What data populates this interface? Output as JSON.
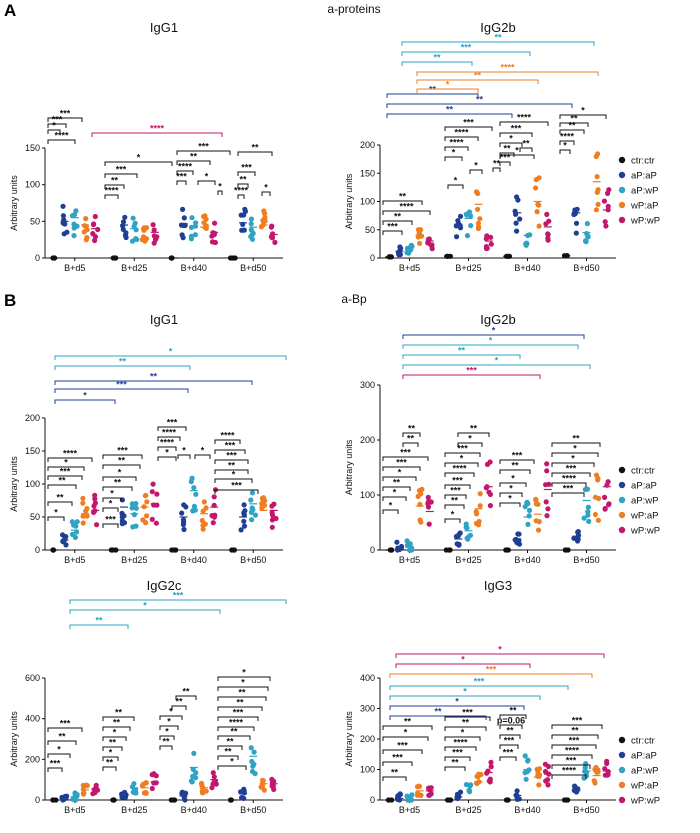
{
  "panel_labels": [
    "A",
    "B"
  ],
  "section_titles": [
    "a-proteins",
    "a-Bp"
  ],
  "colors": {
    "ctr:ctr": "#111111",
    "aP:aP": "#1f3f94",
    "aP:wP": "#2ea3c4",
    "wP:aP": "#ef7d22",
    "wP:wP": "#c2176d"
  },
  "legend_entries": [
    "ctr:ctr",
    "aP:aP",
    "aP:wP",
    "wP:aP",
    "wP:wP"
  ],
  "chart_data": [
    {
      "type": "scatter",
      "title": "IgG1",
      "section": "a-proteins",
      "ylabel": "Arbitrary units",
      "ylim": [
        0,
        150
      ],
      "yticks": [
        "0",
        "50",
        "100",
        "150"
      ],
      "categories": [
        "B+d5",
        "B+d25",
        "B+d40",
        "B+d50"
      ],
      "series": [
        {
          "name": "ctr:ctr",
          "values": [
            0,
            0,
            0,
            0
          ]
        },
        {
          "name": "aP:aP",
          "values": [
            50,
            45,
            47,
            48
          ]
        },
        {
          "name": "aP:wP",
          "values": [
            55,
            40,
            42,
            42
          ]
        },
        {
          "name": "wP:aP",
          "values": [
            45,
            40,
            42,
            45
          ]
        },
        {
          "name": "wP:wP",
          "values": [
            40,
            35,
            35,
            32
          ]
        }
      ],
      "significance": [
        {
          "label": "*",
          "group": "wP:wP"
        },
        {
          "label": "***"
        },
        {
          "label": "****"
        },
        {
          "label": "***"
        },
        {
          "label": "****"
        },
        {
          "label": "*"
        },
        {
          "label": "***"
        },
        {
          "label": "**"
        },
        {
          "label": "****"
        },
        {
          "label": "***"
        },
        {
          "label": "**"
        },
        {
          "label": "****"
        },
        {
          "label": "***"
        },
        {
          "label": "*"
        },
        {
          "label": "*"
        },
        {
          "label": "**"
        },
        {
          "label": "***"
        },
        {
          "label": "**"
        },
        {
          "label": "****"
        },
        {
          "label": "*"
        }
      ]
    },
    {
      "type": "scatter",
      "title": "IgG2b",
      "section": "a-proteins",
      "ylabel": "Arbitrary units",
      "ylim": [
        0,
        200
      ],
      "yticks": [
        "0",
        "50",
        "100",
        "150",
        "200"
      ],
      "categories": [
        "B+d5",
        "B+d25",
        "B+d40",
        "B+d50"
      ],
      "series": [
        {
          "name": "ctr:ctr",
          "values": [
            2,
            3,
            3,
            4
          ]
        },
        {
          "name": "aP:aP",
          "values": [
            12,
            60,
            80,
            80
          ]
        },
        {
          "name": "aP:wP",
          "values": [
            15,
            70,
            40,
            45
          ]
        },
        {
          "name": "wP:aP",
          "values": [
            40,
            95,
            100,
            135
          ]
        },
        {
          "name": "wP:wP",
          "values": [
            30,
            30,
            55,
            85
          ]
        }
      ],
      "significance": [
        {
          "label": "***"
        },
        {
          "label": "**"
        },
        {
          "label": "****"
        },
        {
          "label": "**"
        },
        {
          "label": "*"
        },
        {
          "label": "*"
        },
        {
          "label": "**"
        },
        {
          "label": "**"
        },
        {
          "label": "**"
        },
        {
          "label": "***"
        },
        {
          "label": "****"
        },
        {
          "label": "****"
        },
        {
          "label": "*"
        },
        {
          "label": "**"
        },
        {
          "label": "*"
        },
        {
          "label": "****"
        },
        {
          "label": "***"
        },
        {
          "label": "*"
        },
        {
          "label": "**"
        },
        {
          "label": "***"
        },
        {
          "label": "**"
        },
        {
          "label": "*"
        },
        {
          "label": "**"
        },
        {
          "label": "**"
        },
        {
          "label": "****"
        },
        {
          "label": "*"
        },
        {
          "label": "**"
        }
      ]
    },
    {
      "type": "scatter",
      "title": "IgG1",
      "section": "a-Bp",
      "ylabel": "Arbitrary units",
      "ylim": [
        0,
        200
      ],
      "yticks": [
        "0",
        "50",
        "100",
        "150",
        "200"
      ],
      "categories": [
        "B+d5",
        "B+d25",
        "B+d40",
        "B+d50"
      ],
      "series": [
        {
          "name": "ctr:ctr",
          "values": [
            0,
            0,
            0,
            0
          ]
        },
        {
          "name": "aP:aP",
          "values": [
            15,
            65,
            50,
            50
          ]
        },
        {
          "name": "aP:wP",
          "values": [
            30,
            55,
            90,
            70
          ]
        },
        {
          "name": "wP:aP",
          "values": [
            55,
            65,
            55,
            60
          ]
        },
        {
          "name": "wP:wP",
          "values": [
            60,
            70,
            65,
            60
          ]
        }
      ],
      "significance": [
        {
          "label": "*"
        },
        {
          "label": "**"
        },
        {
          "label": "**"
        },
        {
          "label": "***"
        },
        {
          "label": "*"
        },
        {
          "label": "****"
        },
        {
          "label": "***"
        },
        {
          "label": "*"
        },
        {
          "label": "*"
        },
        {
          "label": "**"
        },
        {
          "label": "*"
        },
        {
          "label": "**"
        },
        {
          "label": "***"
        },
        {
          "label": "****"
        },
        {
          "label": "****"
        },
        {
          "label": "***"
        },
        {
          "label": "*"
        },
        {
          "label": "*"
        },
        {
          "label": "*"
        },
        {
          "label": "****"
        },
        {
          "label": "***"
        },
        {
          "label": "***"
        },
        {
          "label": "**"
        },
        {
          "label": "*"
        },
        {
          "label": "***"
        }
      ]
    },
    {
      "type": "scatter",
      "title": "IgG2b",
      "section": "a-Bp",
      "ylabel": "Arbitrary units",
      "ylim": [
        0,
        300
      ],
      "yticks": [
        "0",
        "100",
        "200",
        "300"
      ],
      "categories": [
        "B+d5",
        "B+d25",
        "B+d40",
        "B+d50"
      ],
      "series": [
        {
          "name": "ctr:ctr",
          "values": [
            0,
            0,
            0,
            0
          ]
        },
        {
          "name": "aP:aP",
          "values": [
            3,
            20,
            20,
            25
          ]
        },
        {
          "name": "aP:wP",
          "values": [
            5,
            35,
            60,
            90
          ]
        },
        {
          "name": "wP:aP",
          "values": [
            80,
            75,
            65,
            95
          ]
        },
        {
          "name": "wP:wP",
          "values": [
            70,
            115,
            110,
            115
          ]
        }
      ],
      "significance": [
        {
          "label": "*"
        },
        {
          "label": "*"
        },
        {
          "label": "**"
        },
        {
          "label": "*"
        },
        {
          "label": "***"
        },
        {
          "label": "***"
        },
        {
          "label": "**"
        },
        {
          "label": "**"
        },
        {
          "label": "*"
        },
        {
          "label": "**"
        },
        {
          "label": "***"
        },
        {
          "label": "***"
        },
        {
          "label": "****"
        },
        {
          "label": "*"
        },
        {
          "label": "***"
        },
        {
          "label": "*"
        },
        {
          "label": "**"
        },
        {
          "label": "*"
        },
        {
          "label": "*"
        },
        {
          "label": "*"
        },
        {
          "label": "**"
        },
        {
          "label": "***"
        },
        {
          "label": "***"
        },
        {
          "label": "****"
        },
        {
          "label": "***"
        },
        {
          "label": "*"
        },
        {
          "label": "*"
        },
        {
          "label": "**"
        }
      ]
    },
    {
      "type": "scatter",
      "title": "IgG2c",
      "section": "a-Bp",
      "ylabel": "Arbitrary units",
      "ylim": [
        0,
        600
      ],
      "yticks": [
        "0",
        "200",
        "400",
        "600"
      ],
      "categories": [
        "B+d5",
        "B+d25",
        "B+d40",
        "B+d50"
      ],
      "series": [
        {
          "name": "ctr:ctr",
          "values": [
            0,
            0,
            0,
            0
          ]
        },
        {
          "name": "aP:aP",
          "values": [
            5,
            15,
            20,
            30
          ]
        },
        {
          "name": "aP:wP",
          "values": [
            15,
            60,
            160,
            215
          ]
        },
        {
          "name": "wP:aP",
          "values": [
            50,
            60,
            60,
            80
          ]
        },
        {
          "name": "wP:wP",
          "values": [
            55,
            90,
            100,
            80
          ]
        }
      ],
      "significance": [
        {
          "label": "***"
        },
        {
          "label": "*"
        },
        {
          "label": "**"
        },
        {
          "label": "***"
        },
        {
          "label": "**"
        },
        {
          "label": "*"
        },
        {
          "label": "**"
        },
        {
          "label": "*"
        },
        {
          "label": "**"
        },
        {
          "label": "**"
        },
        {
          "label": "**"
        },
        {
          "label": "*"
        },
        {
          "label": "*"
        },
        {
          "label": "*"
        },
        {
          "label": "**"
        },
        {
          "label": "**"
        },
        {
          "label": "*"
        },
        {
          "label": "**"
        },
        {
          "label": "**"
        },
        {
          "label": "**"
        },
        {
          "label": "****"
        },
        {
          "label": "***"
        },
        {
          "label": "**"
        },
        {
          "label": "**"
        },
        {
          "label": "*"
        },
        {
          "label": "*"
        }
      ]
    },
    {
      "type": "scatter",
      "title": "IgG3",
      "section": "a-Bp",
      "ylabel": "Arbitrary units",
      "ylim": [
        0,
        400
      ],
      "yticks": [
        "0",
        "100",
        "200",
        "300",
        "400"
      ],
      "categories": [
        "B+d5",
        "B+d25",
        "B+d40",
        "B+d50"
      ],
      "series": [
        {
          "name": "ctr:ctr",
          "values": [
            0,
            0,
            0,
            0
          ]
        },
        {
          "name": "aP:aP",
          "values": [
            5,
            10,
            15,
            30
          ]
        },
        {
          "name": "aP:wP",
          "values": [
            10,
            45,
            100,
            95
          ]
        },
        {
          "name": "wP:aP",
          "values": [
            30,
            60,
            75,
            80
          ]
        },
        {
          "name": "wP:wP",
          "values": [
            30,
            90,
            85,
            95
          ]
        }
      ],
      "significance": [
        {
          "label": "**"
        },
        {
          "label": "***"
        },
        {
          "label": "***"
        },
        {
          "label": "*"
        },
        {
          "label": "**"
        },
        {
          "label": "**"
        },
        {
          "label": "***"
        },
        {
          "label": "****"
        },
        {
          "label": "*"
        },
        {
          "label": "**"
        },
        {
          "label": "***"
        },
        {
          "label": "***"
        },
        {
          "label": "***"
        },
        {
          "label": "**"
        },
        {
          "label": "p=0.06"
        },
        {
          "label": "**"
        },
        {
          "label": "****"
        },
        {
          "label": "***"
        },
        {
          "label": "****"
        },
        {
          "label": "***"
        },
        {
          "label": "**"
        },
        {
          "label": "***"
        },
        {
          "label": "**"
        },
        {
          "label": "*"
        },
        {
          "label": "*"
        },
        {
          "label": "***"
        },
        {
          "label": "***"
        },
        {
          "label": "*"
        },
        {
          "label": "*"
        }
      ]
    }
  ]
}
